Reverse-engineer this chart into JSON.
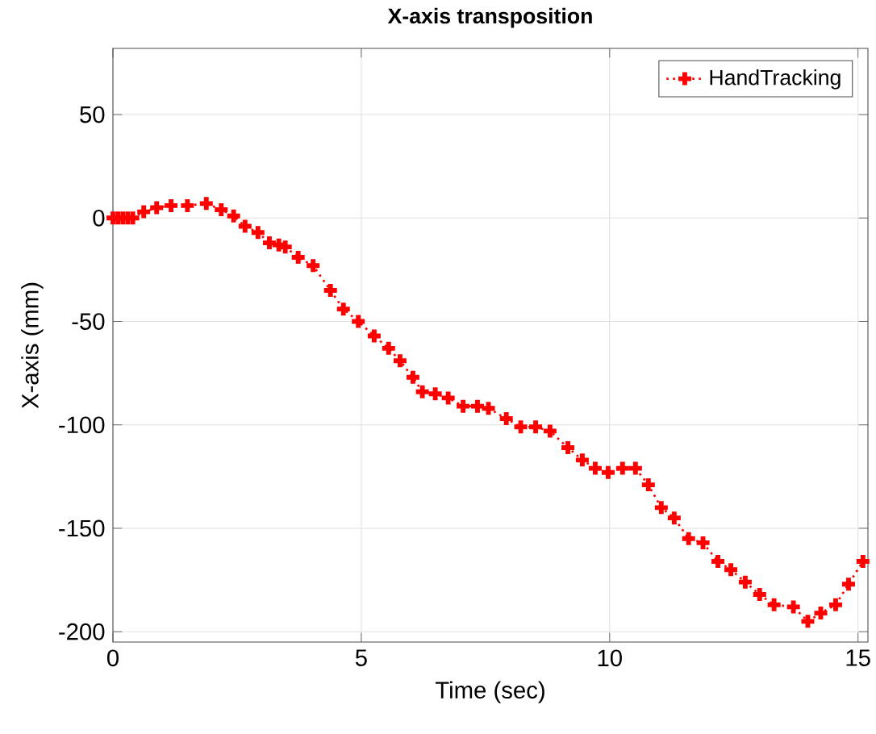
{
  "chart_data": {
    "type": "line",
    "title": "X-axis transposition",
    "xlabel": "Time (sec)",
    "ylabel": "X-axis (mm)",
    "xlim": [
      0,
      15.2
    ],
    "ylim": [
      -205,
      82
    ],
    "xticks": [
      0,
      5,
      10,
      15
    ],
    "yticks": [
      -200,
      -150,
      -100,
      -50,
      0,
      50
    ],
    "grid": true,
    "legend": "top right",
    "marker": "cross",
    "line_style": "dotted",
    "series": [
      {
        "name": "HandTracking",
        "color": "#ff0000",
        "x": [
          0,
          0.1,
          0.2,
          0.3,
          0.4,
          0.62,
          0.88,
          1.17,
          1.5,
          1.88,
          2.18,
          2.43,
          2.66,
          2.92,
          3.15,
          3.34,
          3.47,
          3.73,
          4.03,
          4.38,
          4.64,
          4.94,
          5.26,
          5.55,
          5.78,
          6.04,
          6.23,
          6.49,
          6.75,
          7.05,
          7.34,
          7.56,
          7.92,
          8.21,
          8.51,
          8.8,
          9.16,
          9.45,
          9.71,
          9.97,
          10.26,
          10.52,
          10.78,
          11.04,
          11.3,
          11.59,
          11.88,
          12.18,
          12.44,
          12.73,
          13.02,
          13.31,
          13.7,
          13.99,
          14.25,
          14.55,
          14.81,
          15.1
        ],
        "values": [
          0,
          0,
          0,
          0,
          0,
          3,
          5,
          6,
          6,
          7,
          4,
          1,
          -4,
          -7,
          -12,
          -13,
          -14,
          -19,
          -23,
          -35,
          -44,
          -50,
          -57,
          -63,
          -69,
          -77,
          -84,
          -85,
          -87,
          -91,
          -91,
          -92,
          -97,
          -101,
          -101,
          -103,
          -111,
          -117,
          -121,
          -123,
          -121,
          -121,
          -129,
          -140,
          -145,
          -155,
          -157,
          -166,
          -170,
          -176,
          -182,
          -187,
          -188,
          -195,
          -191,
          -187,
          -177,
          -166
        ]
      }
    ]
  }
}
